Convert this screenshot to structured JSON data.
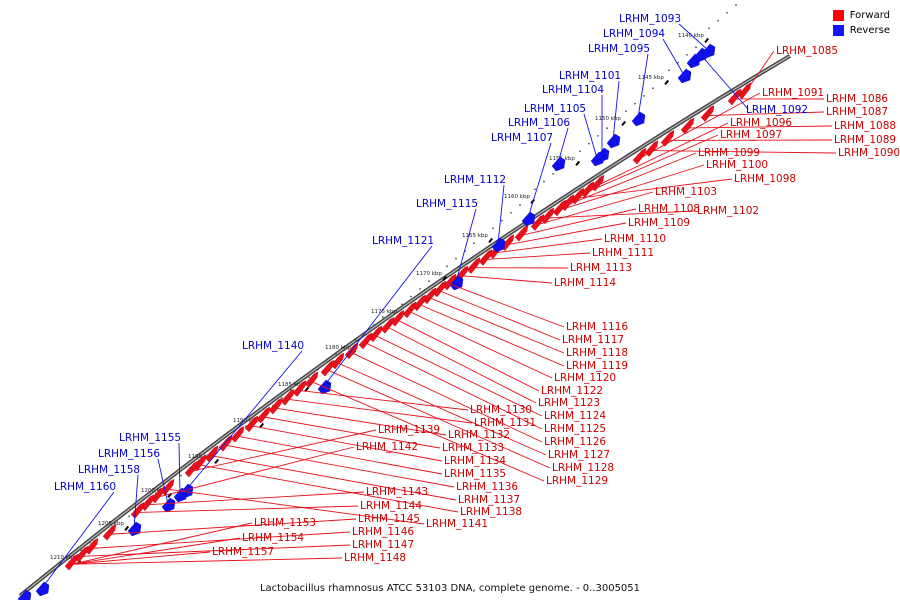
{
  "legend": {
    "items": [
      {
        "label": "Forward",
        "color": "#ff0000"
      },
      {
        "label": "Reverse",
        "color": "#1414ff"
      }
    ]
  },
  "caption": "Lactobacillus rhamnosus ATCC 53103 DNA, complete genome. - 0..3005051",
  "colors": {
    "forward": "#e8101a",
    "reverse": "#1010ee",
    "backbone": "#555555",
    "tick": "#000000"
  },
  "ticks": [
    "1140 kbp",
    "1145 kbp",
    "1150 kbp",
    "1155 kbp",
    "1160 kbp",
    "1165 kbp",
    "1170 kbp",
    "1175 kbp",
    "1180 kbp",
    "1185 kbp",
    "1190 kbp",
    "1195 kbp",
    "1200 kbp",
    "1205 kbp",
    "1210 kbp"
  ],
  "forward_genes": [
    "LRHM_1085",
    "LRHM_1086",
    "LRHM_1087",
    "LRHM_1088",
    "LRHM_1089",
    "LRHM_1090",
    "LRHM_1091",
    "LRHM_1096",
    "LRHM_1097",
    "LRHM_1098",
    "LRHM_1099",
    "LRHM_1100",
    "LRHM_1102",
    "LRHM_1103",
    "LRHM_1108",
    "LRHM_1109",
    "LRHM_1110",
    "LRHM_1111",
    "LRHM_1113",
    "LRHM_1114",
    "LRHM_1116",
    "LRHM_1117",
    "LRHM_1118",
    "LRHM_1119",
    "LRHM_1120",
    "LRHM_1122",
    "LRHM_1123",
    "LRHM_1124",
    "LRHM_1125",
    "LRHM_1126",
    "LRHM_1127",
    "LRHM_1128",
    "LRHM_1129",
    "LRHM_1130",
    "LRHM_1131",
    "LRHM_1132",
    "LRHM_1133",
    "LRHM_1134",
    "LRHM_1135",
    "LRHM_1136",
    "LRHM_1137",
    "LRHM_1138",
    "LRHM_1139",
    "LRHM_1141",
    "LRHM_1142",
    "LRHM_1143",
    "LRHM_1144",
    "LRHM_1145",
    "LRHM_1146",
    "LRHM_1147",
    "LRHM_1148",
    "LRHM_1153",
    "LRHM_1154",
    "LRHM_1157"
  ],
  "reverse_genes": [
    "LRHM_1092",
    "LRHM_1093",
    "LRHM_1094",
    "LRHM_1095",
    "LRHM_1101",
    "LRHM_1104",
    "LRHM_1105",
    "LRHM_1106",
    "LRHM_1107",
    "LRHM_1112",
    "LRHM_1115",
    "LRHM_1121",
    "LRHM_1140",
    "LRHM_1155",
    "LRHM_1156",
    "LRHM_1158",
    "LRHM_1160"
  ]
}
